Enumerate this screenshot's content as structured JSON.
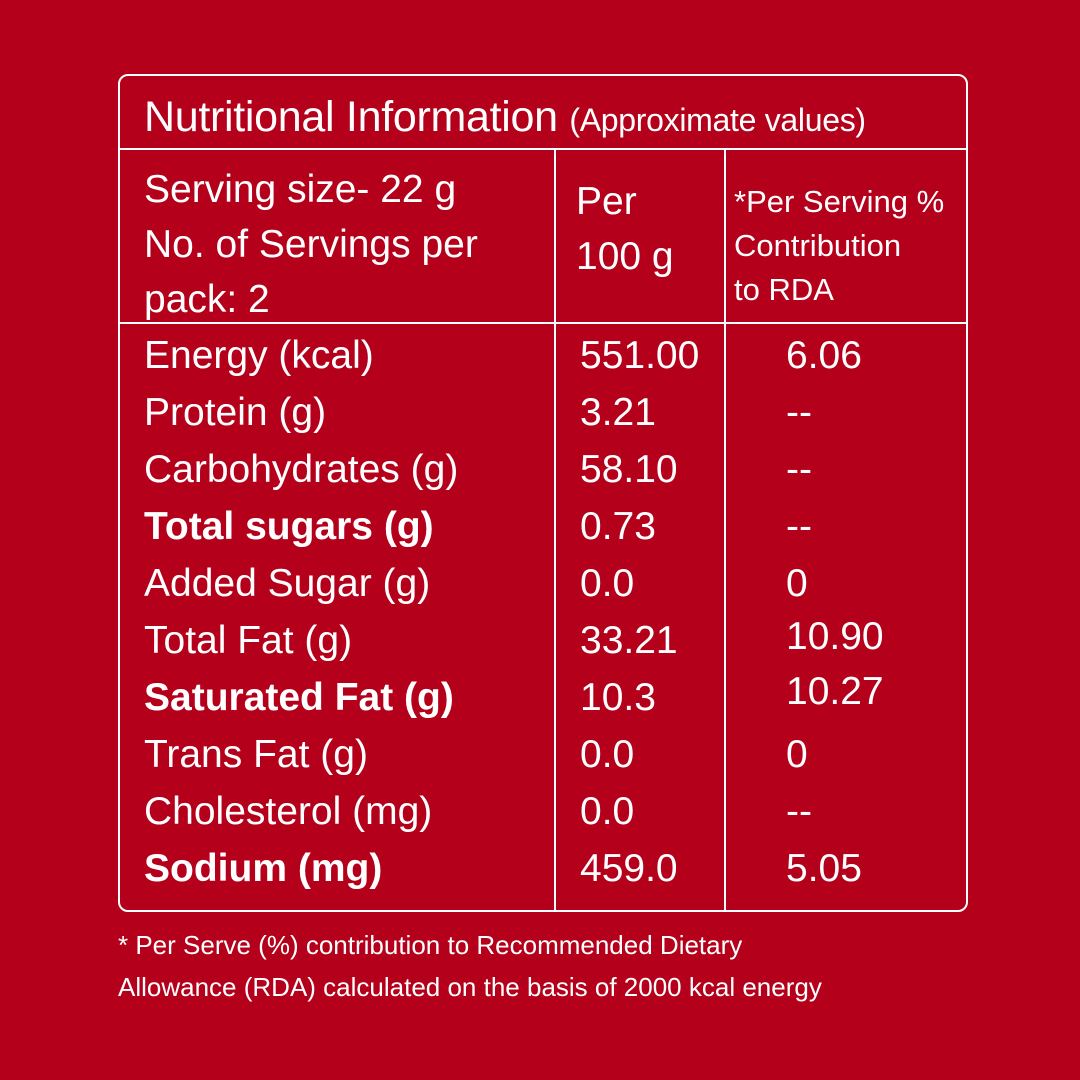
{
  "title": {
    "main": "Nutritional Information",
    "sub": "(Approximate values)"
  },
  "header": {
    "serving_line1": "Serving size- 22 g",
    "serving_line2": "No. of Servings per",
    "serving_line3": "pack: 2",
    "per100_line1": "Per",
    "per100_line2": "100 g",
    "rda_line1": "*Per Serving %",
    "rda_line2": "Contribution",
    "rda_line3": "to RDA"
  },
  "rows": [
    {
      "name": "Energy (kcal)",
      "per100": "551.00",
      "rda": "6.06",
      "bold": false
    },
    {
      "name": "Protein (g)",
      "per100": "3.21",
      "rda": "--",
      "bold": false
    },
    {
      "name": "Carbohydrates (g)",
      "per100": "58.10",
      "rda": "--",
      "bold": false
    },
    {
      "name": "Total sugars (g)",
      "per100": "0.73",
      "rda": "--",
      "bold": true
    },
    {
      "name": "Added Sugar (g)",
      "per100": "0.0",
      "rda": "0",
      "bold": false
    },
    {
      "name": "Total Fat (g)",
      "per100": "33.21",
      "rda": "10.90",
      "bold": false
    },
    {
      "name": "Saturated Fat (g)",
      "per100": "10.3",
      "rda": "10.27",
      "bold": true
    },
    {
      "name": "Trans Fat (g)",
      "per100": "0.0",
      "rda": "0",
      "bold": false
    },
    {
      "name": "Cholesterol (mg)",
      "per100": "0.0",
      "rda": "--",
      "bold": false
    },
    {
      "name": "Sodium (mg)",
      "per100": "459.0",
      "rda": "5.05",
      "bold": true
    }
  ],
  "footnote": {
    "line1": "* Per Serve (%) contribution to Recommended Dietary",
    "line2": "Allowance (RDA) calculated on the basis of 2000 kcal energy"
  },
  "colors": {
    "background": "#b4001b",
    "text": "#ffffff"
  }
}
